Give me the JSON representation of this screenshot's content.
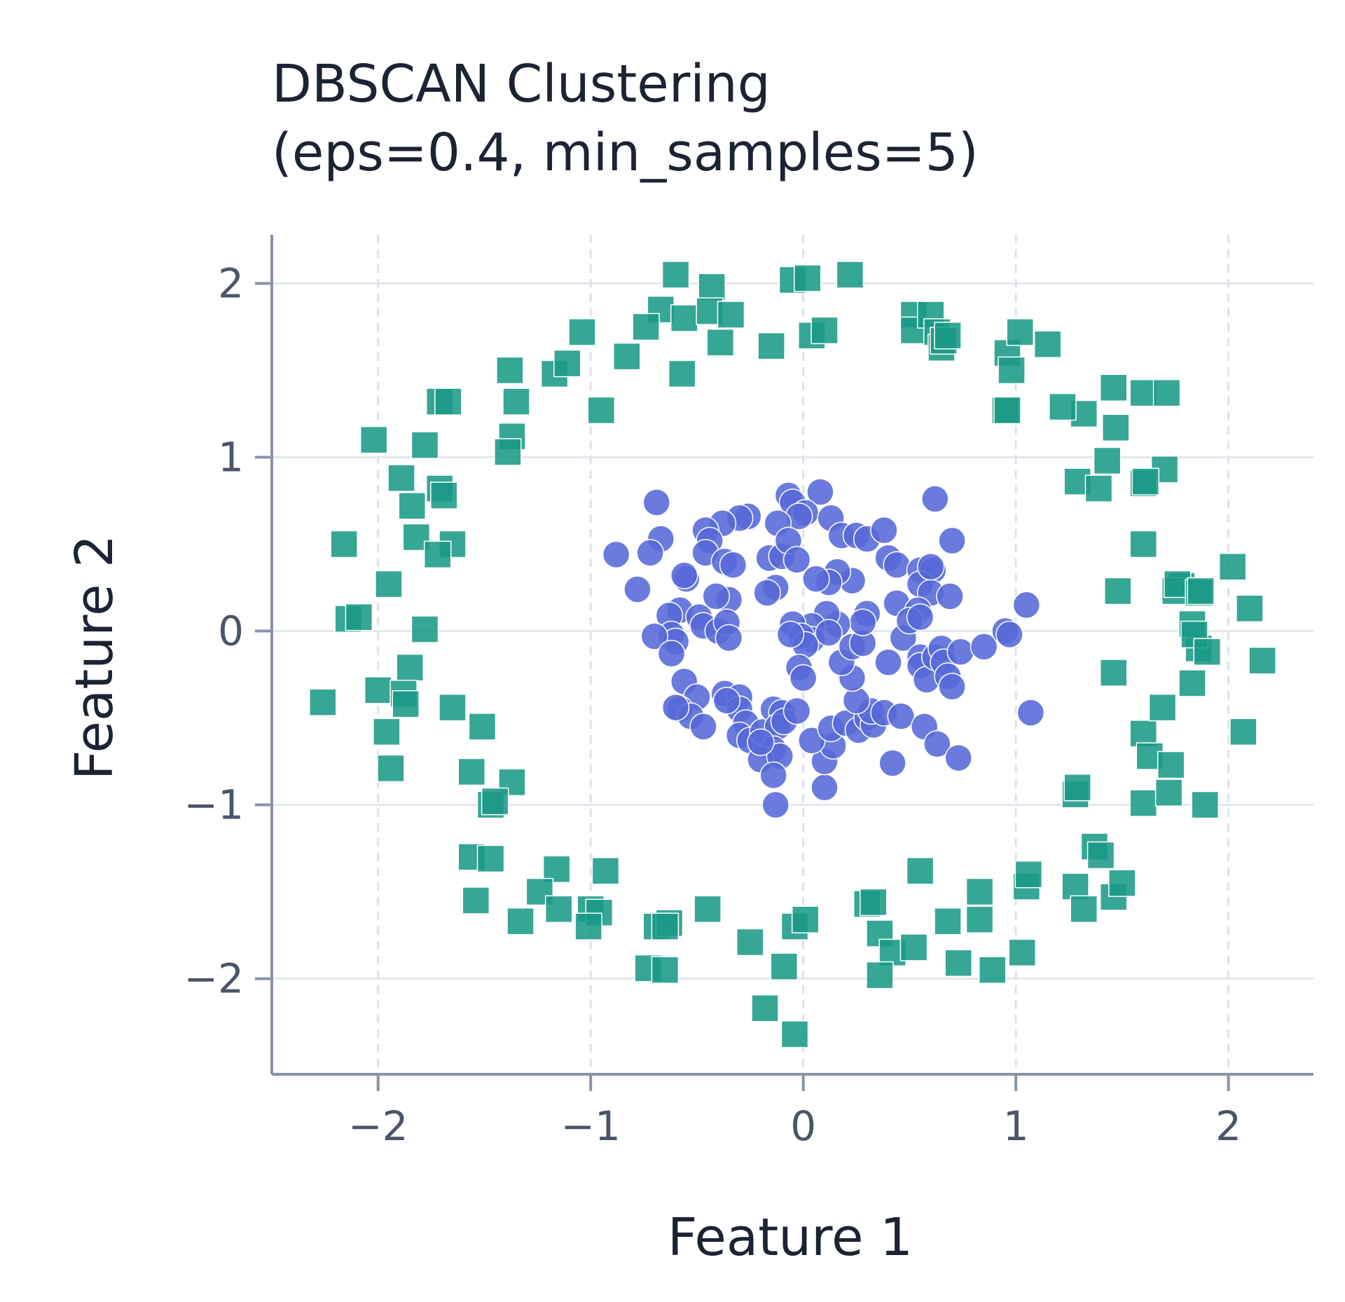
{
  "chart_data": {
    "type": "scatter",
    "title": [
      "DBSCAN Clustering",
      "(eps=0.4, min_samples=5)"
    ],
    "xlabel": "Feature 1",
    "ylabel": "Feature 2",
    "xlim": [
      -2.5,
      2.4
    ],
    "ylim": [
      -2.55,
      2.28
    ],
    "xticks": [
      -2,
      -1,
      0,
      1,
      2
    ],
    "yticks": [
      -2,
      -1,
      0,
      1,
      2
    ],
    "xtick_labels": [
      "−2",
      "−1",
      "0",
      "1",
      "2"
    ],
    "ytick_labels": [
      "−2",
      "−1",
      "0",
      "1",
      "2"
    ],
    "grid": true,
    "legend": "none",
    "colors": {
      "inner_cluster": "#5569d8",
      "outer_cluster": "#1a9a86",
      "axis": "#8793a8",
      "grid_solid": "#e3e7ee",
      "grid_dashed": "#dde2ea"
    },
    "series": [
      {
        "marker": "square",
        "color": "#1a9a86",
        "points": [
          [
            -0.6,
            2.05
          ],
          [
            -0.43,
            1.98
          ],
          [
            -0.05,
            2.02
          ],
          [
            0.02,
            2.03
          ],
          [
            0.22,
            2.05
          ],
          [
            -0.67,
            1.85
          ],
          [
            -0.56,
            1.8
          ],
          [
            -0.44,
            1.84
          ],
          [
            -0.34,
            1.82
          ],
          [
            -0.74,
            1.75
          ],
          [
            -1.04,
            1.72
          ],
          [
            -0.39,
            1.66
          ],
          [
            -0.15,
            1.64
          ],
          [
            0.04,
            1.7
          ],
          [
            0.1,
            1.73
          ],
          [
            -0.83,
            1.58
          ],
          [
            -0.57,
            1.48
          ],
          [
            -1.17,
            1.48
          ],
          [
            -1.11,
            1.54
          ],
          [
            -1.38,
            1.5
          ],
          [
            -1.35,
            1.32
          ],
          [
            -1.71,
            1.32
          ],
          [
            -1.67,
            1.32
          ],
          [
            -0.95,
            1.27
          ],
          [
            -1.37,
            1.12
          ],
          [
            -1.39,
            1.03
          ],
          [
            -2.02,
            1.1
          ],
          [
            -1.78,
            1.07
          ],
          [
            -1.89,
            0.88
          ],
          [
            -1.84,
            0.72
          ],
          [
            -1.71,
            0.82
          ],
          [
            -1.69,
            0.78
          ],
          [
            -1.82,
            0.54
          ],
          [
            -1.65,
            0.5
          ],
          [
            -1.72,
            0.44
          ],
          [
            -2.16,
            0.5
          ],
          [
            -1.95,
            0.27
          ],
          [
            -2.14,
            0.07
          ],
          [
            -2.09,
            0.08
          ],
          [
            -1.78,
            0.01
          ],
          [
            -1.85,
            -0.21
          ],
          [
            -2.0,
            -0.34
          ],
          [
            -1.88,
            -0.36
          ],
          [
            -1.87,
            -0.42
          ],
          [
            -2.26,
            -0.41
          ],
          [
            -1.65,
            -0.44
          ],
          [
            -1.51,
            -0.55
          ],
          [
            -1.96,
            -0.58
          ],
          [
            -1.94,
            -0.79
          ],
          [
            -1.56,
            -0.81
          ],
          [
            -1.37,
            -0.87
          ],
          [
            -1.47,
            -1.0
          ],
          [
            -1.45,
            -0.98
          ],
          [
            -1.56,
            -1.3
          ],
          [
            -1.47,
            -1.31
          ],
          [
            -1.54,
            -1.55
          ],
          [
            -1.16,
            -1.37
          ],
          [
            -1.24,
            -1.5
          ],
          [
            -1.15,
            -1.6
          ],
          [
            -0.93,
            -1.38
          ],
          [
            -1.0,
            -1.6
          ],
          [
            -0.96,
            -1.62
          ],
          [
            -1.33,
            -1.67
          ],
          [
            -1.01,
            -1.7
          ],
          [
            -0.69,
            -1.7
          ],
          [
            -0.63,
            -1.68
          ],
          [
            -0.65,
            -1.7
          ],
          [
            -0.45,
            -1.6
          ],
          [
            -0.73,
            -1.94
          ],
          [
            -0.65,
            -1.95
          ],
          [
            -0.25,
            -1.79
          ],
          [
            -0.04,
            -1.7
          ],
          [
            0.01,
            -1.66
          ],
          [
            -0.09,
            -1.93
          ],
          [
            -0.18,
            -2.17
          ],
          [
            -0.04,
            -2.32
          ],
          [
            0.3,
            -1.57
          ],
          [
            0.33,
            -1.56
          ],
          [
            0.36,
            -1.74
          ],
          [
            0.42,
            -1.85
          ],
          [
            0.52,
            -1.82
          ],
          [
            0.36,
            -1.98
          ],
          [
            0.55,
            -1.38
          ],
          [
            0.68,
            -1.67
          ],
          [
            0.83,
            -1.66
          ],
          [
            0.83,
            -1.5
          ],
          [
            0.73,
            -1.91
          ],
          [
            0.89,
            -1.95
          ],
          [
            1.03,
            -1.85
          ],
          [
            1.05,
            -1.47
          ],
          [
            1.06,
            -1.4
          ],
          [
            1.28,
            -0.94
          ],
          [
            1.29,
            -0.9
          ],
          [
            1.28,
            -1.47
          ],
          [
            1.32,
            -1.6
          ],
          [
            1.37,
            -1.24
          ],
          [
            1.4,
            -1.29
          ],
          [
            1.46,
            -1.53
          ],
          [
            1.5,
            -1.45
          ],
          [
            1.6,
            -0.99
          ],
          [
            1.6,
            -0.59
          ],
          [
            1.63,
            -0.72
          ],
          [
            1.69,
            -0.44
          ],
          [
            1.72,
            -0.93
          ],
          [
            1.73,
            -0.77
          ],
          [
            1.83,
            -0.3
          ],
          [
            1.86,
            -0.1
          ],
          [
            1.83,
            0.04
          ],
          [
            1.84,
            -0.02
          ],
          [
            1.89,
            -1.0
          ],
          [
            1.9,
            -0.12
          ],
          [
            2.07,
            -0.58
          ],
          [
            1.78,
            0.26
          ],
          [
            1.75,
            0.23
          ],
          [
            1.76,
            0.27
          ],
          [
            1.86,
            0.22
          ],
          [
            1.87,
            0.23
          ],
          [
            2.02,
            0.37
          ],
          [
            2.1,
            0.13
          ],
          [
            2.16,
            -0.17
          ],
          [
            1.48,
            0.23
          ],
          [
            1.46,
            -0.24
          ],
          [
            1.6,
            0.5
          ],
          [
            1.7,
            0.93
          ],
          [
            1.6,
            0.85
          ],
          [
            1.61,
            0.86
          ],
          [
            1.29,
            0.86
          ],
          [
            1.39,
            0.82
          ],
          [
            1.43,
            0.98
          ],
          [
            1.47,
            1.17
          ],
          [
            1.32,
            1.25
          ],
          [
            1.46,
            1.4
          ],
          [
            1.6,
            1.37
          ],
          [
            1.71,
            1.37
          ],
          [
            1.22,
            1.29
          ],
          [
            0.95,
            1.27
          ],
          [
            0.96,
            1.27
          ],
          [
            0.96,
            1.6
          ],
          [
            0.98,
            1.5
          ],
          [
            1.02,
            1.72
          ],
          [
            1.15,
            1.65
          ],
          [
            0.52,
            1.82
          ],
          [
            0.52,
            1.73
          ],
          [
            0.6,
            1.82
          ],
          [
            0.63,
            1.72
          ],
          [
            0.65,
            1.63
          ],
          [
            0.66,
            1.67
          ],
          [
            0.68,
            1.7
          ]
        ]
      },
      {
        "marker": "circle",
        "color": "#5569d8",
        "points": [
          [
            -0.07,
            0.78
          ],
          [
            0.08,
            0.8
          ],
          [
            -0.05,
            0.74
          ],
          [
            0.01,
            0.68
          ],
          [
            -0.02,
            0.66
          ],
          [
            -0.12,
            0.62
          ],
          [
            -0.26,
            0.66
          ],
          [
            -0.3,
            0.65
          ],
          [
            -0.38,
            0.62
          ],
          [
            -0.46,
            0.58
          ],
          [
            -0.44,
            0.52
          ],
          [
            -0.46,
            0.45
          ],
          [
            -0.69,
            0.74
          ],
          [
            -0.67,
            0.53
          ],
          [
            -0.72,
            0.45
          ],
          [
            -0.88,
            0.44
          ],
          [
            -0.78,
            0.24
          ],
          [
            -0.55,
            0.3
          ],
          [
            -0.56,
            0.32
          ],
          [
            -0.37,
            0.4
          ],
          [
            -0.33,
            0.38
          ],
          [
            -0.16,
            0.42
          ],
          [
            -0.1,
            0.43
          ],
          [
            -0.07,
            0.52
          ],
          [
            -0.03,
            0.41
          ],
          [
            0.13,
            0.65
          ],
          [
            0.18,
            0.55
          ],
          [
            0.25,
            0.55
          ],
          [
            0.3,
            0.53
          ],
          [
            0.38,
            0.58
          ],
          [
            0.4,
            0.42
          ],
          [
            0.44,
            0.38
          ],
          [
            0.55,
            0.35
          ],
          [
            0.61,
            0.35
          ],
          [
            0.55,
            0.27
          ],
          [
            0.6,
            0.22
          ],
          [
            0.7,
            0.52
          ],
          [
            0.62,
            0.76
          ],
          [
            0.69,
            0.2
          ],
          [
            0.44,
            0.16
          ],
          [
            0.23,
            0.29
          ],
          [
            0.16,
            0.34
          ],
          [
            0.12,
            0.28
          ],
          [
            0.06,
            0.3
          ],
          [
            -0.13,
            0.25
          ],
          [
            -0.17,
            0.22
          ],
          [
            -0.35,
            0.18
          ],
          [
            -0.41,
            0.2
          ],
          [
            -0.58,
            0.12
          ],
          [
            -0.63,
            0.09
          ],
          [
            -0.49,
            0.08
          ],
          [
            -0.47,
            0.03
          ],
          [
            -0.4,
            0.0
          ],
          [
            -0.36,
            0.05
          ],
          [
            -0.62,
            -0.02
          ],
          [
            -0.6,
            -0.06
          ],
          [
            -0.7,
            -0.03
          ],
          [
            -0.62,
            -0.13
          ],
          [
            -0.56,
            -0.29
          ],
          [
            -0.35,
            -0.04
          ],
          [
            -0.5,
            -0.38
          ],
          [
            -0.58,
            -0.45
          ],
          [
            -0.53,
            -0.49
          ],
          [
            -0.37,
            -0.36
          ],
          [
            -0.3,
            -0.38
          ],
          [
            -0.3,
            -0.45
          ],
          [
            -0.27,
            -0.53
          ],
          [
            -0.3,
            -0.6
          ],
          [
            -0.25,
            -0.63
          ],
          [
            -0.19,
            -0.58
          ],
          [
            -0.14,
            -0.45
          ],
          [
            -0.1,
            -0.47
          ],
          [
            -0.12,
            -0.55
          ],
          [
            -0.09,
            -0.52
          ],
          [
            -0.03,
            -0.46
          ],
          [
            -0.14,
            -0.68
          ],
          [
            -0.2,
            -0.74
          ],
          [
            -0.11,
            -0.72
          ],
          [
            -0.14,
            -0.83
          ],
          [
            -0.13,
            -1.0
          ],
          [
            0.1,
            -0.9
          ],
          [
            0.1,
            -0.75
          ],
          [
            0.14,
            -0.66
          ],
          [
            0.04,
            -0.63
          ],
          [
            0.13,
            -0.56
          ],
          [
            0.2,
            -0.53
          ],
          [
            0.26,
            -0.57
          ],
          [
            0.3,
            -0.5
          ],
          [
            0.33,
            -0.54
          ],
          [
            0.32,
            -0.46
          ],
          [
            0.38,
            -0.47
          ],
          [
            0.46,
            -0.49
          ],
          [
            0.57,
            -0.55
          ],
          [
            0.63,
            -0.65
          ],
          [
            0.73,
            -0.73
          ],
          [
            0.42,
            -0.76
          ],
          [
            0.25,
            -0.4
          ],
          [
            0.23,
            -0.27
          ],
          [
            0.18,
            -0.18
          ],
          [
            0.23,
            -0.09
          ],
          [
            0.28,
            -0.07
          ],
          [
            0.4,
            -0.18
          ],
          [
            0.47,
            -0.04
          ],
          [
            0.55,
            -0.15
          ],
          [
            0.55,
            -0.2
          ],
          [
            0.58,
            -0.28
          ],
          [
            0.62,
            -0.15
          ],
          [
            0.65,
            -0.1
          ],
          [
            0.66,
            -0.18
          ],
          [
            0.68,
            -0.26
          ],
          [
            0.7,
            -0.32
          ],
          [
            0.74,
            -0.12
          ],
          [
            0.85,
            -0.09
          ],
          [
            0.95,
            0.0
          ],
          [
            0.97,
            -0.02
          ],
          [
            1.05,
            0.15
          ],
          [
            1.07,
            -0.47
          ],
          [
            0.54,
            0.12
          ],
          [
            0.5,
            0.06
          ],
          [
            0.55,
            0.08
          ],
          [
            0.3,
            0.1
          ],
          [
            0.28,
            0.05
          ],
          [
            0.16,
            0.04
          ],
          [
            0.11,
            0.1
          ],
          [
            0.04,
            0.03
          ],
          [
            -0.05,
            0.04
          ],
          [
            0.04,
            -0.05
          ],
          [
            -0.01,
            -0.03
          ],
          [
            0.01,
            -0.08
          ],
          [
            -0.06,
            -0.02
          ],
          [
            0.12,
            -0.01
          ],
          [
            -0.02,
            -0.21
          ],
          [
            0.0,
            -0.27
          ],
          [
            -0.36,
            -0.4
          ],
          [
            -0.47,
            -0.55
          ],
          [
            -0.2,
            -0.64
          ],
          [
            -0.6,
            -0.44
          ],
          [
            0.6,
            0.37
          ]
        ]
      }
    ]
  }
}
